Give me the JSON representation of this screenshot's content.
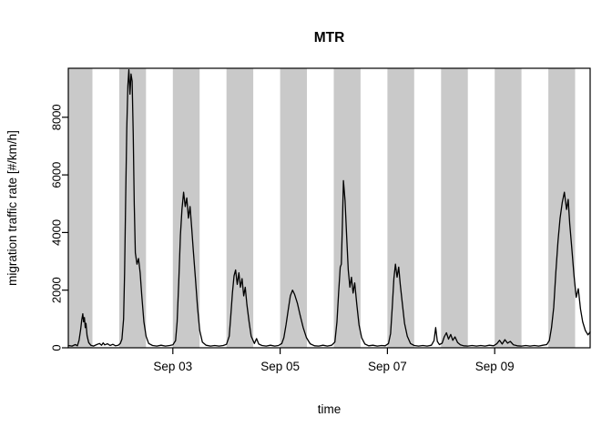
{
  "chart_data": {
    "type": "line",
    "title": "MTR",
    "xlabel": "time",
    "ylabel": "migration traffic rate [#/km/h]",
    "x_range": [
      0.05,
      9.78
    ],
    "ylim": [
      0,
      9700
    ],
    "y_ticks": [
      0,
      2000,
      4000,
      6000,
      8000
    ],
    "x_ticks": [
      {
        "t": 2,
        "label": "Sep 03"
      },
      {
        "t": 4,
        "label": "Sep 05"
      },
      {
        "t": 6,
        "label": "Sep 07"
      },
      {
        "t": 8,
        "label": "Sep 09"
      }
    ],
    "x_axis_note": "t is days since Sep 01 00:00",
    "bands": {
      "color": "#c9c9c9",
      "intervals": [
        [
          0,
          0.5
        ],
        [
          1,
          1.5
        ],
        [
          2,
          2.5
        ],
        [
          3,
          3.5
        ],
        [
          4,
          4.5
        ],
        [
          5,
          5.5
        ],
        [
          6,
          6.5
        ],
        [
          7,
          7.5
        ],
        [
          8,
          8.5
        ],
        [
          9,
          9.5
        ]
      ]
    },
    "series": [
      {
        "name": "MTR",
        "color": "#000000",
        "points": [
          [
            0.05,
            80
          ],
          [
            0.12,
            60
          ],
          [
            0.18,
            110
          ],
          [
            0.22,
            70
          ],
          [
            0.25,
            260
          ],
          [
            0.28,
            620
          ],
          [
            0.3,
            950
          ],
          [
            0.32,
            1180
          ],
          [
            0.335,
            900
          ],
          [
            0.35,
            1050
          ],
          [
            0.365,
            700
          ],
          [
            0.38,
            850
          ],
          [
            0.4,
            420
          ],
          [
            0.43,
            180
          ],
          [
            0.47,
            90
          ],
          [
            0.52,
            60
          ],
          [
            0.58,
            110
          ],
          [
            0.63,
            150
          ],
          [
            0.67,
            90
          ],
          [
            0.7,
            170
          ],
          [
            0.73,
            100
          ],
          [
            0.78,
            140
          ],
          [
            0.83,
            80
          ],
          [
            0.88,
            120
          ],
          [
            0.93,
            70
          ],
          [
            0.98,
            90
          ],
          [
            1.02,
            150
          ],
          [
            1.05,
            300
          ],
          [
            1.08,
            1000
          ],
          [
            1.1,
            2600
          ],
          [
            1.12,
            5200
          ],
          [
            1.14,
            7600
          ],
          [
            1.16,
            9100
          ],
          [
            1.18,
            9650
          ],
          [
            1.2,
            8800
          ],
          [
            1.22,
            9500
          ],
          [
            1.24,
            9250
          ],
          [
            1.26,
            7400
          ],
          [
            1.28,
            5000
          ],
          [
            1.3,
            3300
          ],
          [
            1.33,
            2900
          ],
          [
            1.36,
            3100
          ],
          [
            1.39,
            2600
          ],
          [
            1.42,
            1800
          ],
          [
            1.46,
            900
          ],
          [
            1.5,
            400
          ],
          [
            1.55,
            150
          ],
          [
            1.62,
            80
          ],
          [
            1.7,
            60
          ],
          [
            1.78,
            90
          ],
          [
            1.86,
            60
          ],
          [
            1.94,
            80
          ],
          [
            2.0,
            100
          ],
          [
            2.05,
            250
          ],
          [
            2.08,
            900
          ],
          [
            2.11,
            2300
          ],
          [
            2.14,
            3900
          ],
          [
            2.17,
            4800
          ],
          [
            2.2,
            5400
          ],
          [
            2.23,
            4900
          ],
          [
            2.26,
            5200
          ],
          [
            2.29,
            4500
          ],
          [
            2.32,
            4900
          ],
          [
            2.35,
            4200
          ],
          [
            2.38,
            3400
          ],
          [
            2.42,
            2400
          ],
          [
            2.46,
            1400
          ],
          [
            2.5,
            600
          ],
          [
            2.55,
            200
          ],
          [
            2.62,
            90
          ],
          [
            2.7,
            60
          ],
          [
            2.78,
            80
          ],
          [
            2.86,
            60
          ],
          [
            2.94,
            80
          ],
          [
            3.0,
            120
          ],
          [
            3.05,
            400
          ],
          [
            3.08,
            1100
          ],
          [
            3.11,
            1900
          ],
          [
            3.14,
            2500
          ],
          [
            3.17,
            2700
          ],
          [
            3.2,
            2200
          ],
          [
            3.23,
            2600
          ],
          [
            3.26,
            2100
          ],
          [
            3.29,
            2400
          ],
          [
            3.32,
            1800
          ],
          [
            3.35,
            2100
          ],
          [
            3.38,
            1500
          ],
          [
            3.42,
            900
          ],
          [
            3.46,
            400
          ],
          [
            3.52,
            150
          ],
          [
            3.56,
            320
          ],
          [
            3.6,
            130
          ],
          [
            3.66,
            80
          ],
          [
            3.74,
            60
          ],
          [
            3.82,
            90
          ],
          [
            3.9,
            60
          ],
          [
            3.97,
            80
          ],
          [
            4.03,
            150
          ],
          [
            4.07,
            350
          ],
          [
            4.11,
            800
          ],
          [
            4.15,
            1300
          ],
          [
            4.19,
            1800
          ],
          [
            4.23,
            2000
          ],
          [
            4.27,
            1850
          ],
          [
            4.32,
            1550
          ],
          [
            4.37,
            1150
          ],
          [
            4.43,
            700
          ],
          [
            4.49,
            350
          ],
          [
            4.56,
            140
          ],
          [
            4.64,
            70
          ],
          [
            4.72,
            60
          ],
          [
            4.8,
            90
          ],
          [
            4.88,
            60
          ],
          [
            4.96,
            90
          ],
          [
            5.02,
            200
          ],
          [
            5.06,
            900
          ],
          [
            5.09,
            1900
          ],
          [
            5.12,
            2800
          ],
          [
            5.14,
            2900
          ],
          [
            5.16,
            4200
          ],
          [
            5.18,
            5800
          ],
          [
            5.21,
            5100
          ],
          [
            5.24,
            3900
          ],
          [
            5.27,
            2700
          ],
          [
            5.3,
            2100
          ],
          [
            5.33,
            2450
          ],
          [
            5.36,
            1900
          ],
          [
            5.39,
            2250
          ],
          [
            5.43,
            1500
          ],
          [
            5.47,
            800
          ],
          [
            5.52,
            350
          ],
          [
            5.58,
            130
          ],
          [
            5.65,
            70
          ],
          [
            5.73,
            90
          ],
          [
            5.81,
            60
          ],
          [
            5.89,
            80
          ],
          [
            5.96,
            70
          ],
          [
            6.02,
            150
          ],
          [
            6.06,
            500
          ],
          [
            6.09,
            1400
          ],
          [
            6.12,
            2400
          ],
          [
            6.15,
            2900
          ],
          [
            6.18,
            2450
          ],
          [
            6.21,
            2800
          ],
          [
            6.24,
            2200
          ],
          [
            6.28,
            1500
          ],
          [
            6.32,
            850
          ],
          [
            6.37,
            400
          ],
          [
            6.43,
            150
          ],
          [
            6.5,
            80
          ],
          [
            6.58,
            60
          ],
          [
            6.66,
            80
          ],
          [
            6.74,
            60
          ],
          [
            6.82,
            90
          ],
          [
            6.87,
            250
          ],
          [
            6.9,
            700
          ],
          [
            6.93,
            220
          ],
          [
            6.97,
            110
          ],
          [
            7.02,
            160
          ],
          [
            7.06,
            380
          ],
          [
            7.1,
            520
          ],
          [
            7.14,
            300
          ],
          [
            7.18,
            460
          ],
          [
            7.22,
            260
          ],
          [
            7.26,
            380
          ],
          [
            7.31,
            180
          ],
          [
            7.36,
            100
          ],
          [
            7.42,
            70
          ],
          [
            7.5,
            60
          ],
          [
            7.58,
            80
          ],
          [
            7.66,
            60
          ],
          [
            7.74,
            80
          ],
          [
            7.82,
            60
          ],
          [
            7.9,
            90
          ],
          [
            7.98,
            70
          ],
          [
            8.04,
            140
          ],
          [
            8.09,
            260
          ],
          [
            8.14,
            130
          ],
          [
            8.19,
            280
          ],
          [
            8.24,
            160
          ],
          [
            8.29,
            220
          ],
          [
            8.35,
            100
          ],
          [
            8.42,
            70
          ],
          [
            8.5,
            60
          ],
          [
            8.58,
            80
          ],
          [
            8.66,
            60
          ],
          [
            8.74,
            80
          ],
          [
            8.82,
            60
          ],
          [
            8.9,
            90
          ],
          [
            8.97,
            110
          ],
          [
            9.02,
            250
          ],
          [
            9.06,
            700
          ],
          [
            9.1,
            1400
          ],
          [
            9.14,
            2600
          ],
          [
            9.18,
            3700
          ],
          [
            9.22,
            4500
          ],
          [
            9.26,
            5050
          ],
          [
            9.3,
            5400
          ],
          [
            9.34,
            4800
          ],
          [
            9.37,
            5150
          ],
          [
            9.4,
            4300
          ],
          [
            9.44,
            3400
          ],
          [
            9.48,
            2500
          ],
          [
            9.52,
            1750
          ],
          [
            9.56,
            2050
          ],
          [
            9.6,
            1350
          ],
          [
            9.64,
            900
          ],
          [
            9.69,
            600
          ],
          [
            9.74,
            450
          ],
          [
            9.78,
            550
          ]
        ]
      }
    ],
    "layout": {
      "plot_left": 75,
      "plot_right": 648,
      "plot_top": 75,
      "plot_bottom": 382,
      "grid": false,
      "legend": "none",
      "box": true
    }
  }
}
